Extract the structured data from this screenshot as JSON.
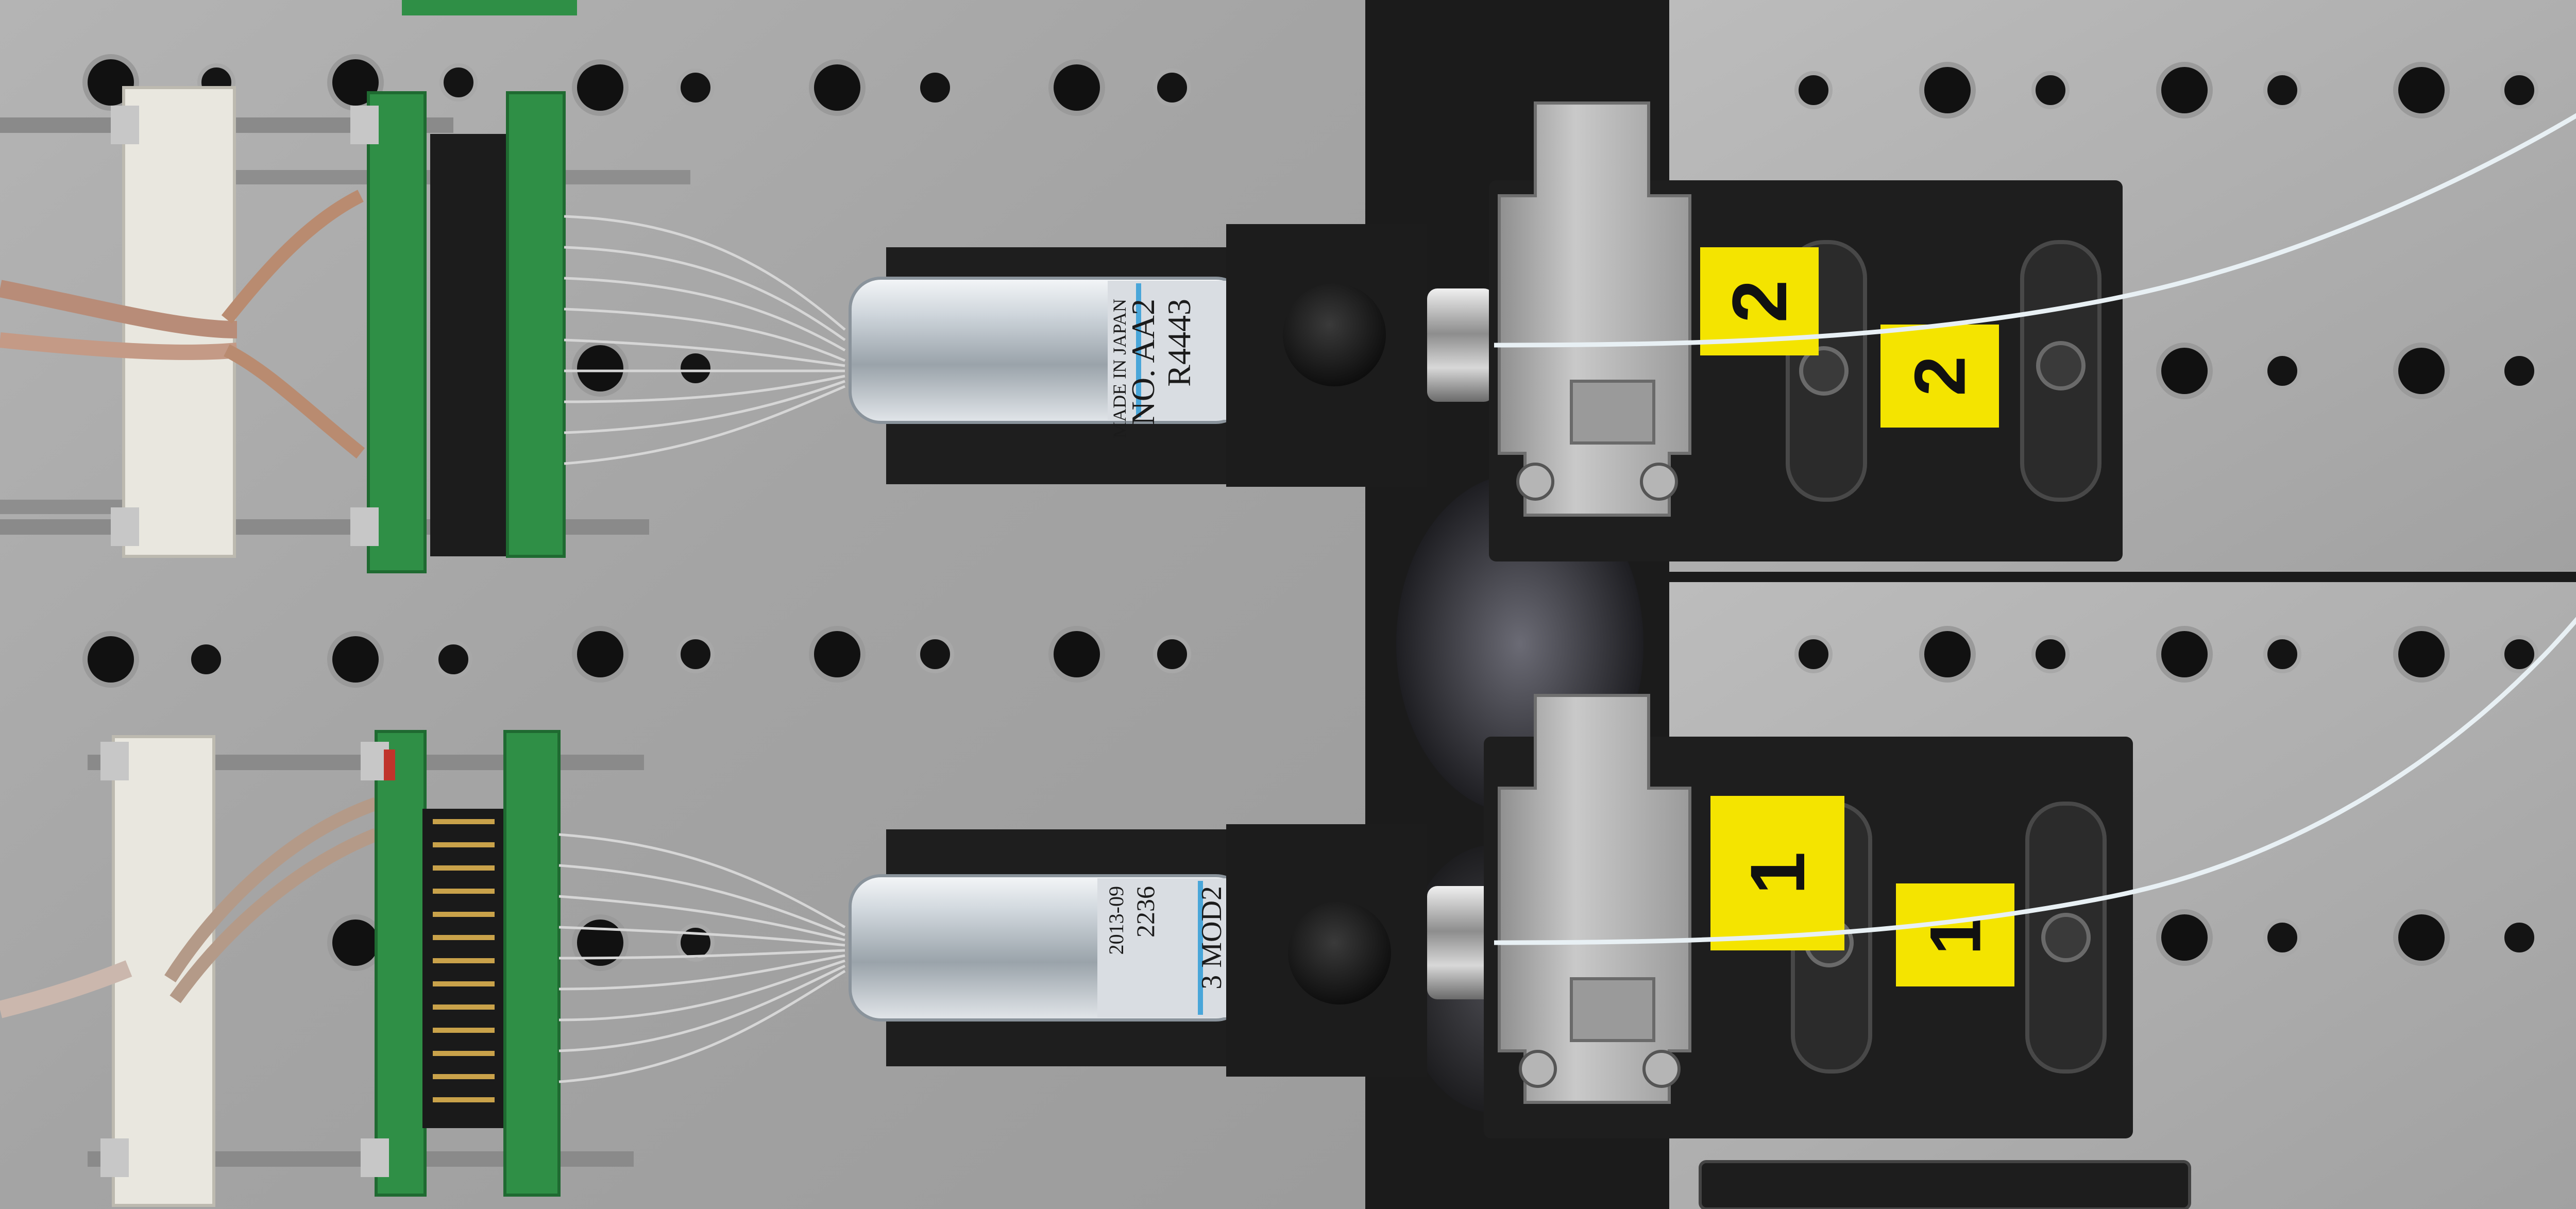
{
  "photo": {
    "subject": "two fiber-coupled photomultiplier tube assemblies on an optical breadboard",
    "colors": {
      "plate": "#a9a9a9",
      "gap": "#1b1b1b",
      "black_mount": "#1e1e1e",
      "label_yellow": "#f4e400",
      "pcb_green": "#2f8f46",
      "fiber": "#e8f0f4"
    }
  },
  "assemblies": [
    {
      "tube_label_lines": [
        "R4443",
        "NO. AA2",
        "MADE IN JAPAN"
      ],
      "fiber_tag": "2",
      "fiber_label": "2"
    },
    {
      "tube_label_lines": [
        "3 MOD2",
        "2236",
        "2013-09"
      ],
      "fiber_tag": "1",
      "fiber_label": "1"
    }
  ]
}
